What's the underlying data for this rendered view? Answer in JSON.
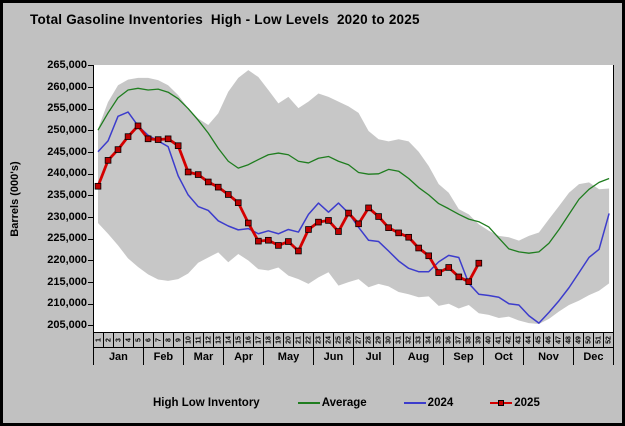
{
  "title": "Total Gasoline Inventories  High - Low Levels  2020 to 2025",
  "y_axis": {
    "label": "Barrels (000's)",
    "min": 205000,
    "max": 265000,
    "ticks": [
      {
        "v": 265000,
        "label": "265,000"
      },
      {
        "v": 260000,
        "label": "260,000"
      },
      {
        "v": 255000,
        "label": "255,000"
      },
      {
        "v": 250000,
        "label": "250,000"
      },
      {
        "v": 245000,
        "label": "245,000"
      },
      {
        "v": 240000,
        "label": "240,000"
      },
      {
        "v": 235000,
        "label": "235,000"
      },
      {
        "v": 230000,
        "label": "230,000"
      },
      {
        "v": 225000,
        "label": "225,000"
      },
      {
        "v": 220000,
        "label": "220,000"
      },
      {
        "v": 215000,
        "label": "215,000"
      },
      {
        "v": 210000,
        "label": "210,000"
      },
      {
        "v": 205000,
        "label": "205,000"
      }
    ]
  },
  "x_axis": {
    "months": [
      {
        "label": "Jan",
        "weeks": 5
      },
      {
        "label": "Feb",
        "weeks": 4
      },
      {
        "label": "Mar",
        "weeks": 4
      },
      {
        "label": "Apr",
        "weeks": 4
      },
      {
        "label": "May",
        "weeks": 5
      },
      {
        "label": "Jun",
        "weeks": 4
      },
      {
        "label": "Jul",
        "weeks": 4
      },
      {
        "label": "Aug",
        "weeks": 5
      },
      {
        "label": "Sep",
        "weeks": 4
      },
      {
        "label": "Oct",
        "weeks": 4
      },
      {
        "label": "Nov",
        "weeks": 5
      },
      {
        "label": "Dec",
        "weeks": 4
      }
    ]
  },
  "legend": {
    "title": "High Low Inventory",
    "items": [
      {
        "label": "Average",
        "color": "#1f7d1f",
        "marker": "none"
      },
      {
        "label": "2024",
        "color": "#3c3ccc",
        "marker": "none"
      },
      {
        "label": "2025",
        "color": "#d40000",
        "marker": "square",
        "marker_fill": "#c00000"
      }
    ]
  },
  "chart_data": {
    "type": "line",
    "title": "Total Gasoline Inventories  High - Low Levels  2020 to 2025",
    "xlabel": "",
    "ylabel": "Barrels (000's)",
    "ylim": [
      205000,
      265000
    ],
    "grid": false,
    "legend_position": "bottom",
    "x": [
      1,
      2,
      3,
      4,
      5,
      6,
      7,
      8,
      9,
      10,
      11,
      12,
      13,
      14,
      15,
      16,
      17,
      18,
      19,
      20,
      21,
      22,
      23,
      24,
      25,
      26,
      27,
      28,
      29,
      30,
      31,
      32,
      33,
      34,
      35,
      36,
      37,
      38,
      39,
      40,
      41,
      42,
      43,
      44,
      45,
      46,
      47,
      48,
      49,
      50,
      51,
      52
    ],
    "band": {
      "name": "High Low Inventory",
      "color": "#c7c7c7",
      "high": [
        250300,
        256500,
        260400,
        261700,
        262100,
        262100,
        261600,
        260400,
        258100,
        255100,
        252700,
        251200,
        253900,
        258900,
        262100,
        263900,
        262300,
        259300,
        256200,
        257700,
        255100,
        256600,
        258500,
        257700,
        256600,
        255500,
        254000,
        249800,
        247900,
        247400,
        247900,
        247400,
        245000,
        241700,
        237500,
        235500,
        231700,
        230500,
        228200,
        226700,
        225500,
        225200,
        224400,
        225500,
        226300,
        229400,
        232400,
        235500,
        237500,
        237900,
        236300,
        236500
      ],
      "low": [
        228500,
        226000,
        223300,
        220300,
        218300,
        216600,
        215400,
        215100,
        215500,
        216800,
        219300,
        220500,
        221700,
        219400,
        221300,
        219800,
        217800,
        217500,
        218200,
        216300,
        215500,
        214400,
        215900,
        217100,
        214000,
        214800,
        215500,
        213600,
        214400,
        213800,
        212500,
        212000,
        211300,
        211500,
        209300,
        209800,
        208700,
        209500,
        207600,
        207200,
        206500,
        206800,
        205900,
        205300,
        205100,
        206300,
        208000,
        209500,
        210500,
        211800,
        212800,
        214500
      ]
    },
    "series": [
      {
        "name": "Average",
        "color": "#1f7d1f",
        "width": 1.3,
        "marker": "none",
        "values": [
          250000,
          254000,
          257500,
          259300,
          259700,
          259300,
          259500,
          258800,
          257300,
          255000,
          252300,
          249300,
          245800,
          242800,
          241200,
          242000,
          243200,
          244300,
          244700,
          244300,
          242800,
          242400,
          243500,
          243900,
          242800,
          242000,
          240200,
          239800,
          239900,
          240900,
          240500,
          238800,
          236700,
          235000,
          233000,
          231800,
          230500,
          229400,
          228800,
          227600,
          225000,
          222500,
          221800,
          221500,
          221800,
          223800,
          227000,
          230500,
          234000,
          236300,
          237900,
          238800
        ]
      },
      {
        "name": "2024",
        "color": "#3c3ccc",
        "width": 1.5,
        "marker": "none",
        "values": [
          245000,
          247500,
          253200,
          254200,
          251000,
          248800,
          247500,
          246200,
          239400,
          235000,
          232300,
          231400,
          229000,
          227800,
          226900,
          227200,
          226000,
          226700,
          226000,
          227000,
          226400,
          230500,
          233100,
          231000,
          233100,
          230800,
          227500,
          224500,
          224200,
          222000,
          219700,
          218000,
          217200,
          217200,
          219500,
          221000,
          220500,
          214500,
          212000,
          211700,
          211300,
          209800,
          209500,
          207000,
          205300,
          207800,
          210500,
          213500,
          217000,
          220500,
          222400,
          230700
        ]
      },
      {
        "name": "2025",
        "color": "#d40000",
        "width": 2.8,
        "marker": "square",
        "marker_fill": "#c00000",
        "values": [
          237000,
          243000,
          245500,
          248500,
          251000,
          248000,
          247800,
          248000,
          246400,
          240300,
          239700,
          238000,
          236800,
          235100,
          233200,
          228500,
          224300,
          224500,
          223300,
          224200,
          222000,
          227000,
          228700,
          229100,
          226500,
          230800,
          228300,
          232000,
          230000,
          227400,
          226200,
          225200,
          222700,
          220900,
          217000,
          218200,
          216000,
          214900,
          219200,
          null,
          null,
          null,
          null,
          null,
          null,
          null,
          null,
          null,
          null,
          null,
          null,
          null
        ]
      }
    ]
  }
}
